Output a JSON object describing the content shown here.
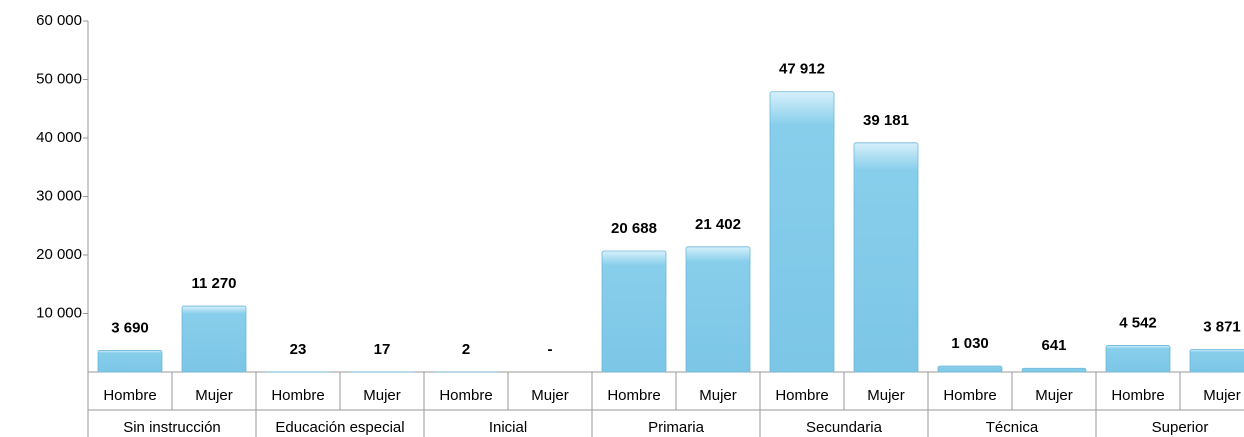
{
  "chart_data": {
    "type": "bar",
    "categories": [
      "Hombre",
      "Mujer",
      "Hombre",
      "Mujer",
      "Hombre",
      "Mujer",
      "Hombre",
      "Mujer",
      "Hombre",
      "Mujer",
      "Hombre",
      "Mujer",
      "Hombre",
      "Mujer"
    ],
    "groups": [
      "Sin instrucción",
      "Educación especial",
      "Inicial",
      "Primaria",
      "Secundaria",
      "Técnica",
      "Superior"
    ],
    "values": [
      3690,
      11270,
      23,
      17,
      2,
      0,
      20688,
      21402,
      47912,
      39181,
      1030,
      641,
      4542,
      3871
    ],
    "value_labels": [
      "3 690",
      "11 270",
      "23",
      "17",
      "2",
      "-",
      "20 688",
      "21 402",
      "47 912",
      "39 181",
      "1 030",
      "641",
      "4 542",
      "3 871"
    ],
    "color": "#87ceeb",
    "ylim": [
      0,
      60000
    ],
    "yticks": [
      {
        "value": 10000,
        "label": "10 000"
      },
      {
        "value": 20000,
        "label": "20 000"
      },
      {
        "value": 30000,
        "label": "30 000"
      },
      {
        "value": 40000,
        "label": "40 000"
      },
      {
        "value": 50000,
        "label": "50 000"
      },
      {
        "value": 60000,
        "label": "60 000"
      }
    ],
    "grid": false
  }
}
